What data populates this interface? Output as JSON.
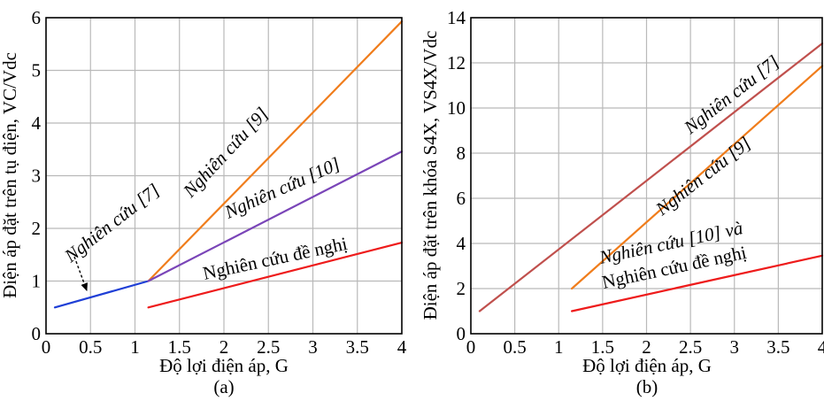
{
  "chart_data": [
    {
      "type": "line",
      "caption": "(a)",
      "xlabel": "Độ lợi điện áp, G",
      "ylabel": "Điện áp đặt trên tụ điện, VC/Vdc",
      "xlim": [
        0,
        4
      ],
      "ylim": [
        0,
        6
      ],
      "xticks": [
        "0",
        "0.5",
        "1",
        "1.5",
        "2",
        "2.5",
        "3",
        "3.5",
        "4"
      ],
      "yticks": [
        "0",
        "1",
        "2",
        "3",
        "4",
        "5",
        "6"
      ],
      "grid": true,
      "series": [
        {
          "name": "Nghiên cứu [7]",
          "color": "#1f3fd6",
          "x": [
            0.1,
            1.15
          ],
          "y": [
            0.5,
            1.0
          ]
        },
        {
          "name": "Nghiên cứu [9]",
          "color": "#f07d1c",
          "x": [
            1.15,
            4.0
          ],
          "y": [
            1.0,
            5.93
          ]
        },
        {
          "name": "Nghiên cứu [10]",
          "color": "#7a45b8",
          "x": [
            1.15,
            4.0
          ],
          "y": [
            1.0,
            3.46
          ]
        },
        {
          "name": "Nghiên cứu đề nghị",
          "color": "#ee1b1b",
          "x": [
            1.15,
            4.0
          ],
          "y": [
            0.5,
            1.73
          ]
        }
      ],
      "annotations": [
        {
          "text": "Nghiên cứu [7]"
        },
        {
          "text": "Nghiên cứu [9]"
        },
        {
          "text": "Nghiên cứu [10]"
        },
        {
          "text": "Nghiên cứu đề nghị"
        }
      ]
    },
    {
      "type": "line",
      "caption": "(b)",
      "xlabel": "Độ lợi điện áp, G",
      "ylabel": "Điện áp đặt trên khóa S4X, VS4X/Vdc",
      "xlim": [
        0,
        4
      ],
      "ylim": [
        0,
        14
      ],
      "xticks": [
        "0",
        "0.5",
        "1",
        "1.5",
        "2",
        "2.5",
        "3",
        "3.5",
        "4"
      ],
      "yticks": [
        "0",
        "2",
        "4",
        "6",
        "8",
        "10",
        "12",
        "14"
      ],
      "grid": true,
      "series": [
        {
          "name": "Nghiên cứu [7]",
          "color": "#c0504d",
          "x": [
            0.1,
            4.0
          ],
          "y": [
            1.0,
            12.86
          ]
        },
        {
          "name": "Nghiên cứu [9]",
          "color": "#f07d1c",
          "x": [
            1.15,
            4.0
          ],
          "y": [
            2.0,
            11.86
          ]
        },
        {
          "name": "Nghiên cứu [10] và Nghiên cứu đề nghị",
          "color": "#ee1b1b",
          "x": [
            1.15,
            4.0
          ],
          "y": [
            1.0,
            3.46
          ]
        }
      ],
      "annotations": [
        {
          "text": "Nghiên cứu [7]"
        },
        {
          "text": "Nghiên cứu [9]"
        },
        {
          "text": "Nghiên cứu [10] và"
        },
        {
          "text": "Nghiên cứu đề nghị"
        }
      ]
    }
  ]
}
